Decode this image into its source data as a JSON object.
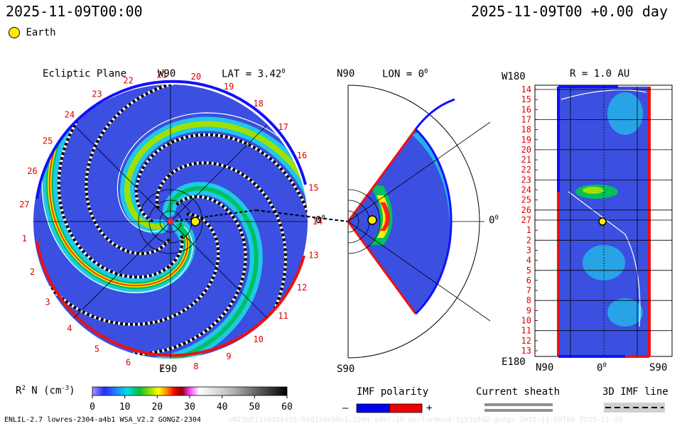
{
  "header": {
    "time_left": "2025-11-09T00:00",
    "time_right": "2025-11-09T00 +0.00 day"
  },
  "legend": {
    "earth_label": "Earth",
    "earth_color": "#ffee00"
  },
  "ecliptic": {
    "title": "Ecliptic Plane",
    "top_label": "W90",
    "lat_label": "LAT = 3.42",
    "lat_sup": "0",
    "bottom_label": "E90",
    "right_label": "0",
    "right_sup": "0",
    "carrington_numbers": [
      "1",
      "2",
      "3",
      "4",
      "5",
      "6",
      "7",
      "8",
      "9",
      "10",
      "11",
      "12",
      "13",
      "14",
      "15",
      "16",
      "17",
      "18",
      "19",
      "20",
      "21",
      "22",
      "23",
      "24",
      "25",
      "26",
      "27"
    ]
  },
  "meridional": {
    "top_label": "N90",
    "lon_label": "LON = 0",
    "lon_sup": "0",
    "bottom_label": "S90",
    "right_label": "0",
    "right_sup": "0"
  },
  "radial": {
    "title": "R = 1.0 AU",
    "top_left_label": "W180",
    "bottom_left_label": "E180",
    "x_labels": [
      "N90",
      "0",
      "S90"
    ],
    "x_center_sup": "0",
    "row_labels": [
      "14",
      "15",
      "16",
      "17",
      "18",
      "19",
      "20",
      "21",
      "22",
      "23",
      "24",
      "25",
      "26",
      "27",
      "1",
      "2",
      "3",
      "4",
      "5",
      "6",
      "7",
      "8",
      "9",
      "10",
      "11",
      "12",
      "13"
    ]
  },
  "colorbar": {
    "label": "R",
    "label_sup": "2",
    "label_rest": " N (cm",
    "label_unit_sup": "-3",
    "label_close": ")",
    "ticks": [
      "0",
      "10",
      "20",
      "30",
      "40",
      "50",
      "60"
    ]
  },
  "imf_legend": {
    "title": "IMF polarity",
    "minus": "–",
    "plus": "+",
    "neg_color": "#0000ee",
    "pos_color": "#ee0000"
  },
  "sheath_legend": {
    "title": "Current sheath"
  },
  "imf3d_legend": {
    "title": "3D IMF line"
  },
  "footer": {
    "model_info": "ENLIL-2.7 lowres-2304-a4b1 WSA_V2.2 GONGZ-2304",
    "run_id": "UNIQUE1110180119/64d130x90x1.2304-a4b1.16-nocfurmncd-1g53q5d2.gongz-2025-11-09T00   2025-11-10"
  }
}
